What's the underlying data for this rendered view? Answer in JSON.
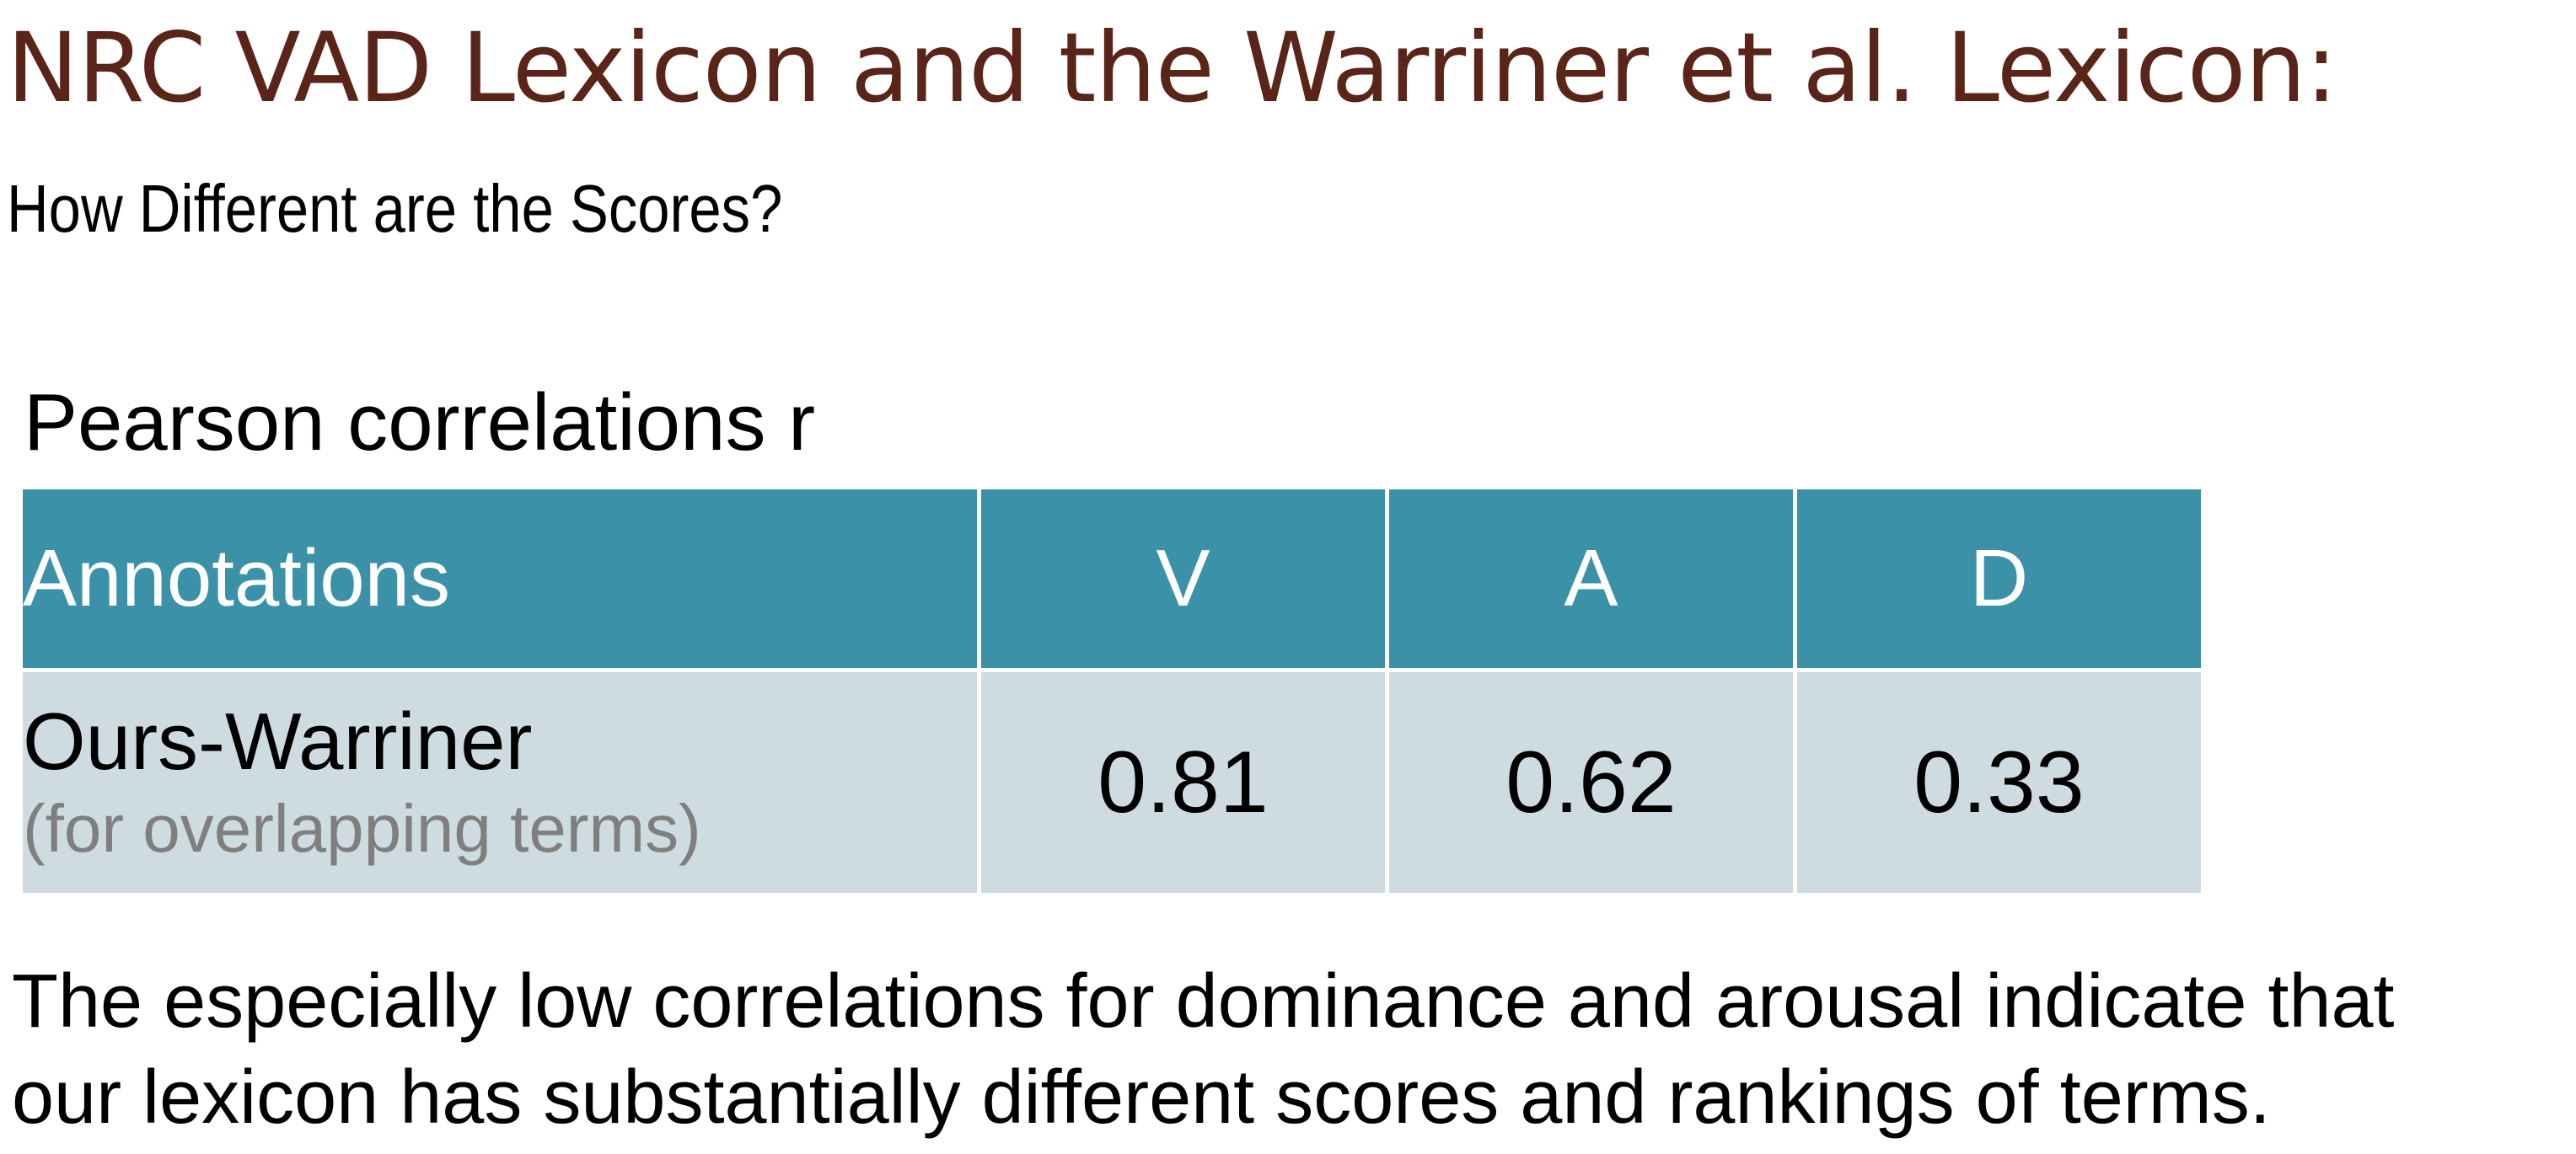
{
  "colors": {
    "title": "#5a2418",
    "header_bg": "#3a91a8",
    "row_bg": "#cedce2",
    "note_text": "#7f7f7f",
    "body_text": "#000000"
  },
  "slide": {
    "title": "NRC VAD Lexicon and the Warriner et al. Lexicon:",
    "subtitle": "How Different are the Scores?",
    "table_caption": "Pearson correlations r",
    "table": {
      "headers": [
        "Annotations",
        "V",
        "A",
        "D"
      ],
      "rows": [
        {
          "label": "Ours-Warriner",
          "note": "(for overlapping terms)",
          "values": [
            "0.81",
            "0.62",
            "0.33"
          ]
        }
      ]
    },
    "body_lines": [
      "The especially low correlations for dominance and arousal indicate that",
      "our lexicon has substantially different scores and rankings of terms."
    ]
  }
}
